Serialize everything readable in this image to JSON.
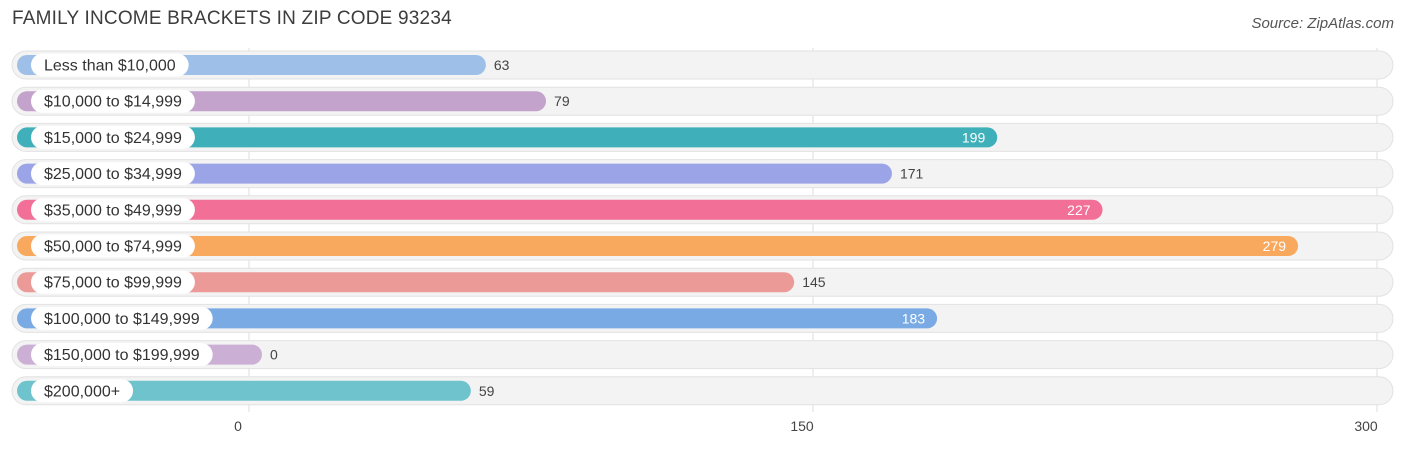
{
  "title": "FAMILY INCOME BRACKETS IN ZIP CODE 93234",
  "source": "Source: ZipAtlas.com",
  "chart_data": {
    "type": "bar",
    "orientation": "horizontal",
    "categories": [
      "Less than $10,000",
      "$10,000 to $14,999",
      "$15,000 to $24,999",
      "$25,000 to $34,999",
      "$35,000 to $49,999",
      "$50,000 to $74,999",
      "$75,000 to $99,999",
      "$100,000 to $149,999",
      "$150,000 to $199,999",
      "$200,000+"
    ],
    "values": [
      63,
      79,
      199,
      171,
      227,
      279,
      145,
      183,
      0,
      59
    ],
    "value_labels": [
      "63",
      "79",
      "199",
      "171",
      "227",
      "279",
      "145",
      "183",
      "0",
      "59"
    ],
    "colors": [
      "#9dbfe8",
      "#c3a2cc",
      "#3fb0b9",
      "#9ba4e6",
      "#f27098",
      "#f8a95e",
      "#ec9a97",
      "#7aaae4",
      "#cbafd5",
      "#6fc3cc"
    ],
    "xlim": [
      0,
      300
    ],
    "xticks": [
      0,
      150,
      300
    ],
    "xtick_labels": [
      "0",
      "150",
      "300"
    ],
    "grid": true,
    "xlabel": "",
    "ylabel": ""
  }
}
